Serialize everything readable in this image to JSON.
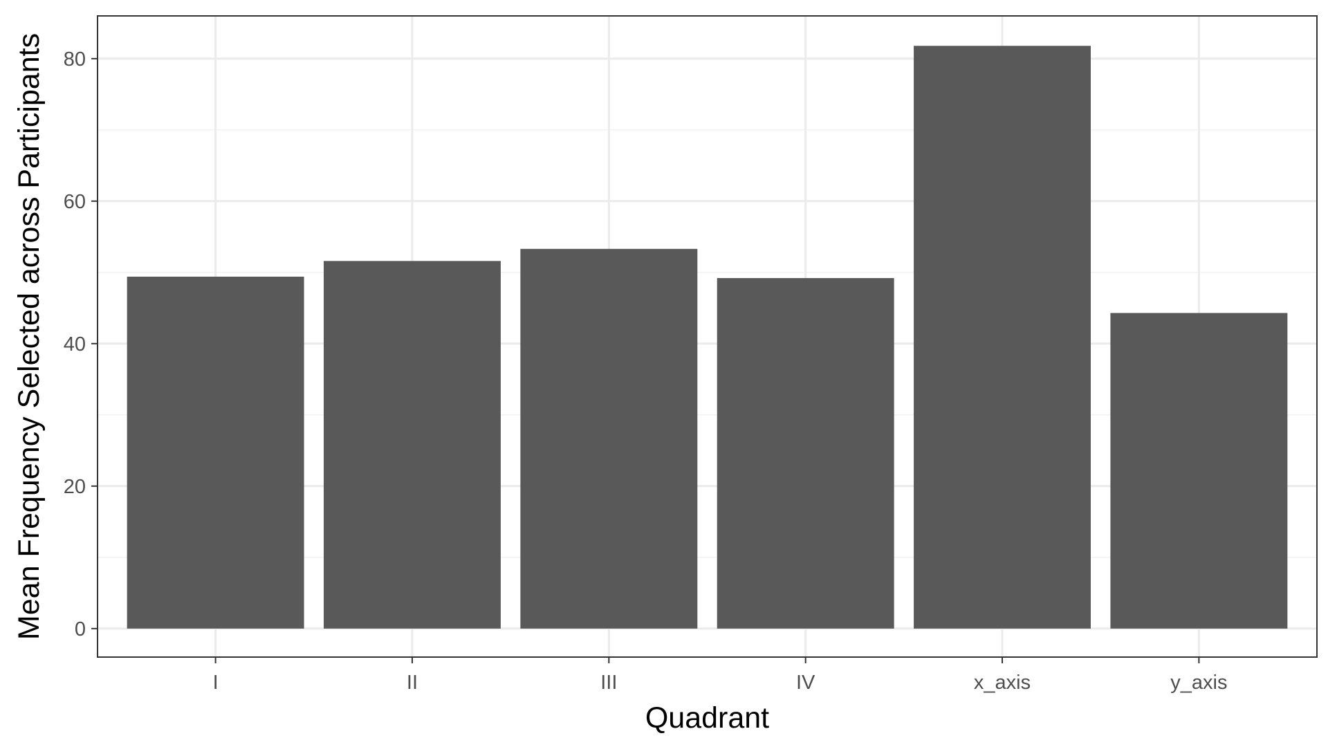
{
  "chart_data": {
    "type": "bar",
    "title": "",
    "xlabel": "Quadrant",
    "ylabel": "Mean Frequency Selected across Participants",
    "categories": [
      "I",
      "II",
      "III",
      "IV",
      "x_axis",
      "y_axis"
    ],
    "values": [
      49.4,
      51.6,
      53.3,
      49.2,
      81.8,
      44.3
    ],
    "ylim": [
      -4,
      86
    ],
    "yticks": [
      0,
      20,
      40,
      60,
      80
    ],
    "grid": true,
    "legend": "none",
    "theme": "bw",
    "colors": {
      "bar": "#595959",
      "panel_background": "#ffffff",
      "panel_border": "#333333",
      "grid_major": "#ebebeb",
      "grid_minor": "#f3f3f3",
      "tick_label": "#4d4d4d",
      "axis_title": "#000000"
    }
  }
}
